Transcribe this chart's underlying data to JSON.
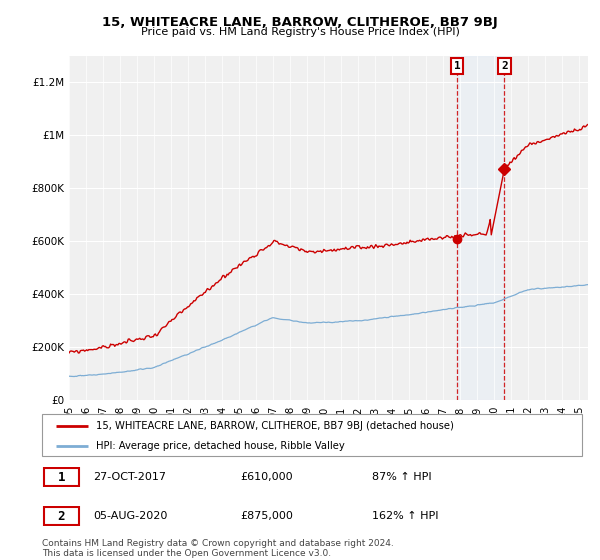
{
  "title": "15, WHITEACRE LANE, BARROW, CLITHEROE, BB7 9BJ",
  "subtitle": "Price paid vs. HM Land Registry's House Price Index (HPI)",
  "legend_line1": "15, WHITEACRE LANE, BARROW, CLITHEROE, BB7 9BJ (detached house)",
  "legend_line2": "HPI: Average price, detached house, Ribble Valley",
  "annotation1_label": "1",
  "annotation1_date": "27-OCT-2017",
  "annotation1_price": "£610,000",
  "annotation1_hpi": "87% ↑ HPI",
  "annotation2_label": "2",
  "annotation2_date": "05-AUG-2020",
  "annotation2_price": "£875,000",
  "annotation2_hpi": "162% ↑ HPI",
  "footer": "Contains HM Land Registry data © Crown copyright and database right 2024.\nThis data is licensed under the Open Government Licence v3.0.",
  "hpi_color": "#7dadd4",
  "price_color": "#cc0000",
  "annotation_box_color": "#cc0000",
  "shade_color": "#ddeeff",
  "background_color": "#f0f0f0",
  "grid_color": "#ffffff",
  "ylim": [
    0,
    1300000
  ],
  "yticks": [
    0,
    200000,
    400000,
    600000,
    800000,
    1000000,
    1200000
  ],
  "ytick_labels": [
    "£0",
    "£200K",
    "£400K",
    "£600K",
    "£800K",
    "£1M",
    "£1.2M"
  ],
  "sale1_x": 2017.82,
  "sale1_y": 610000,
  "sale2_x": 2020.59,
  "sale2_y": 875000,
  "xmin": 1995,
  "xmax": 2025.5
}
